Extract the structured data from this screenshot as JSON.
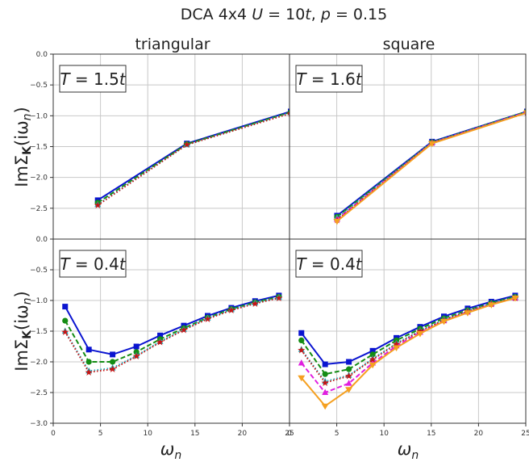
{
  "figure": {
    "suptitle_parts": {
      "prefix": "DCA 4x4 ",
      "U_sym": "U",
      "U_rest": " = 10",
      "U_t": "t",
      "sep": ", ",
      "p_sym": "p",
      "p_rest": " = 0.15"
    },
    "col_titles": [
      "triangular",
      "square"
    ],
    "ylabel": {
      "pre": "Im",
      "sigma": "Σ",
      "sub": "K",
      "arg": "(iω",
      "argsub": "n",
      "close": ")"
    },
    "xlabel": {
      "omega": "ω",
      "sub": "n"
    },
    "temps": [
      "T = 1.5t",
      "T = 1.6t",
      "T = 0.4t",
      "T = 0.4t"
    ]
  },
  "chart_data": [
    {
      "type": "line",
      "panel": "triangular, T = 1.5t",
      "temperature_label": "T = 1.5t",
      "xlim": [
        0,
        25
      ],
      "ylim": [
        -3.0,
        0.0
      ],
      "series": [
        {
          "color": "#0a14d0",
          "marker": "square",
          "dash": "solid",
          "x": [
            4.71,
            14.14,
            25.13
          ],
          "y": [
            -2.37,
            -1.45,
            -0.93
          ]
        },
        {
          "color": "#148c14",
          "marker": "circle",
          "dash": "dashed",
          "x": [
            4.71,
            14.14,
            25.13
          ],
          "y": [
            -2.41,
            -1.46,
            -0.94
          ]
        },
        {
          "color": "#20b0c0",
          "marker": "triangle-up",
          "dash": "dotted",
          "x": [
            4.71,
            14.14,
            25.13
          ],
          "y": [
            -2.44,
            -1.47,
            -0.95
          ]
        },
        {
          "color": "#c81414",
          "marker": "star",
          "dash": "dotted",
          "x": [
            4.71,
            14.14,
            25.13
          ],
          "y": [
            -2.45,
            -1.47,
            -0.96
          ]
        }
      ]
    },
    {
      "type": "line",
      "panel": "square, T = 1.6t",
      "temperature_label": "T = 1.6t",
      "xlim": [
        0,
        25
      ],
      "ylim": [
        -3.0,
        0.0
      ],
      "series": [
        {
          "color": "#0a14d0",
          "marker": "square",
          "dash": "solid",
          "x": [
            5.03,
            15.08,
            25.13
          ],
          "y": [
            -2.62,
            -1.42,
            -0.93
          ]
        },
        {
          "color": "#148c14",
          "marker": "circle",
          "dash": "dashed",
          "x": [
            5.03,
            15.08,
            25.13
          ],
          "y": [
            -2.64,
            -1.43,
            -0.93
          ]
        },
        {
          "color": "#20b0c0",
          "marker": "triangle-up",
          "dash": "dotted",
          "x": [
            5.03,
            15.08,
            25.13
          ],
          "y": [
            -2.66,
            -1.43,
            -0.94
          ]
        },
        {
          "color": "#e020e0",
          "marker": "triangle-up",
          "dash": "dashed",
          "x": [
            5.03,
            15.08,
            25.13
          ],
          "y": [
            -2.68,
            -1.44,
            -0.94
          ]
        },
        {
          "color": "#c81414",
          "marker": "star",
          "dash": "dotted",
          "x": [
            5.03,
            15.08,
            25.13
          ],
          "y": [
            -2.69,
            -1.44,
            -0.95
          ]
        },
        {
          "color": "#f5a020",
          "marker": "triangle-down",
          "dash": "solid",
          "x": [
            5.03,
            15.08,
            25.13
          ],
          "y": [
            -2.71,
            -1.45,
            -0.95
          ]
        }
      ]
    },
    {
      "type": "line",
      "panel": "triangular, T = 0.4t",
      "temperature_label": "T = 0.4t",
      "xlim": [
        0,
        25
      ],
      "ylim": [
        -3.0,
        0.0
      ],
      "series": [
        {
          "color": "#0a14d0",
          "marker": "square",
          "dash": "solid",
          "x": [
            1.26,
            3.77,
            6.28,
            8.8,
            11.31,
            13.82,
            16.34,
            18.85,
            21.36,
            23.88
          ],
          "y": [
            -1.1,
            -1.8,
            -1.88,
            -1.75,
            -1.57,
            -1.41,
            -1.25,
            -1.12,
            -1.01,
            -0.92
          ]
        },
        {
          "color": "#148c14",
          "marker": "circle",
          "dash": "dashed",
          "x": [
            1.26,
            3.77,
            6.28,
            8.8,
            11.31,
            13.82,
            16.34,
            18.85,
            21.36,
            23.88
          ],
          "y": [
            -1.33,
            -2.0,
            -2.0,
            -1.84,
            -1.63,
            -1.45,
            -1.28,
            -1.14,
            -1.03,
            -0.94
          ]
        },
        {
          "color": "#20b0c0",
          "marker": "triangle-up",
          "dash": "dotted",
          "x": [
            1.26,
            3.77,
            6.28,
            8.8,
            11.31,
            13.82,
            16.34,
            18.85,
            21.36,
            23.88
          ],
          "y": [
            -1.5,
            -2.15,
            -2.1,
            -1.9,
            -1.67,
            -1.47,
            -1.29,
            -1.15,
            -1.04,
            -0.95
          ]
        },
        {
          "color": "#c81414",
          "marker": "star",
          "dash": "dotted",
          "x": [
            1.26,
            3.77,
            6.28,
            8.8,
            11.31,
            13.82,
            16.34,
            18.85,
            21.36,
            23.88
          ],
          "y": [
            -1.51,
            -2.17,
            -2.12,
            -1.91,
            -1.68,
            -1.48,
            -1.3,
            -1.16,
            -1.05,
            -0.96
          ]
        }
      ]
    },
    {
      "type": "line",
      "panel": "square, T = 0.4t",
      "temperature_label": "T = 0.4t",
      "xlim": [
        0,
        25
      ],
      "ylim": [
        -3.0,
        0.0
      ],
      "series": [
        {
          "color": "#0a14d0",
          "marker": "square",
          "dash": "solid",
          "x": [
            1.26,
            3.77,
            6.28,
            8.8,
            11.31,
            13.82,
            16.34,
            18.85,
            21.36,
            23.88
          ],
          "y": [
            -1.53,
            -2.04,
            -2.0,
            -1.82,
            -1.61,
            -1.43,
            -1.26,
            -1.13,
            -1.02,
            -0.92
          ]
        },
        {
          "color": "#148c14",
          "marker": "circle",
          "dash": "dashed",
          "x": [
            1.26,
            3.77,
            6.28,
            8.8,
            11.31,
            13.82,
            16.34,
            18.85,
            21.36,
            23.88
          ],
          "y": [
            -1.65,
            -2.2,
            -2.12,
            -1.88,
            -1.65,
            -1.46,
            -1.29,
            -1.16,
            -1.04,
            -0.94
          ]
        },
        {
          "color": "#20b0c0",
          "marker": "triangle-up",
          "dash": "dotted",
          "x": [
            1.26,
            3.77,
            6.28,
            8.8,
            11.31,
            13.82,
            16.34,
            18.85,
            21.36,
            23.88
          ],
          "y": [
            -1.8,
            -2.32,
            -2.22,
            -1.95,
            -1.7,
            -1.49,
            -1.31,
            -1.17,
            -1.05,
            -0.95
          ]
        },
        {
          "color": "#e020e0",
          "marker": "triangle-up",
          "dash": "dashed",
          "x": [
            1.26,
            3.77,
            6.28,
            8.8,
            11.31,
            13.82,
            16.34,
            18.85,
            21.36,
            23.88
          ],
          "y": [
            -2.02,
            -2.5,
            -2.35,
            -2.02,
            -1.74,
            -1.52,
            -1.33,
            -1.19,
            -1.06,
            -0.96
          ]
        },
        {
          "color": "#c81414",
          "marker": "star",
          "dash": "dotted",
          "x": [
            1.26,
            3.77,
            6.28,
            8.8,
            11.31,
            13.82,
            16.34,
            18.85,
            21.36,
            23.88
          ],
          "y": [
            -1.81,
            -2.34,
            -2.23,
            -1.96,
            -1.71,
            -1.5,
            -1.32,
            -1.18,
            -1.06,
            -0.96
          ]
        },
        {
          "color": "#f5a020",
          "marker": "triangle-down",
          "dash": "solid",
          "x": [
            1.26,
            3.77,
            6.28,
            8.8,
            11.31,
            13.82,
            16.34,
            18.85,
            21.36,
            23.88
          ],
          "y": [
            -2.26,
            -2.72,
            -2.45,
            -2.05,
            -1.77,
            -1.54,
            -1.34,
            -1.2,
            -1.07,
            -0.96
          ]
        }
      ]
    }
  ]
}
